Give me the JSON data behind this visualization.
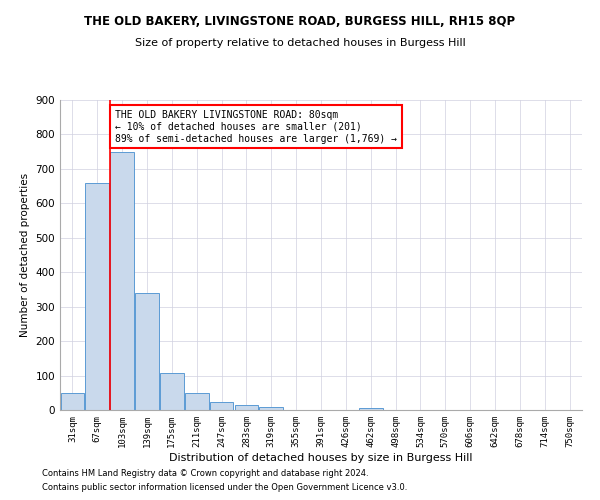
{
  "title": "THE OLD BAKERY, LIVINGSTONE ROAD, BURGESS HILL, RH15 8QP",
  "subtitle": "Size of property relative to detached houses in Burgess Hill",
  "xlabel": "Distribution of detached houses by size in Burgess Hill",
  "ylabel": "Number of detached properties",
  "footnote1": "Contains HM Land Registry data © Crown copyright and database right 2024.",
  "footnote2": "Contains public sector information licensed under the Open Government Licence v3.0.",
  "bin_labels": [
    "31sqm",
    "67sqm",
    "103sqm",
    "139sqm",
    "175sqm",
    "211sqm",
    "247sqm",
    "283sqm",
    "319sqm",
    "355sqm",
    "391sqm",
    "426sqm",
    "462sqm",
    "498sqm",
    "534sqm",
    "570sqm",
    "606sqm",
    "642sqm",
    "678sqm",
    "714sqm",
    "750sqm"
  ],
  "bar_heights": [
    50,
    660,
    750,
    340,
    108,
    48,
    22,
    14,
    10,
    0,
    0,
    0,
    7,
    0,
    0,
    0,
    0,
    0,
    0,
    0,
    0
  ],
  "bar_color": "#c9d9ec",
  "bar_edge_color": "#5b9bd5",
  "red_line_x": 1.5,
  "annotation_title": "THE OLD BAKERY LIVINGSTONE ROAD: 80sqm",
  "annotation_line1": "← 10% of detached houses are smaller (201)",
  "annotation_line2": "89% of semi-detached houses are larger (1,769) →",
  "ylim": [
    0,
    900
  ],
  "yticks": [
    0,
    100,
    200,
    300,
    400,
    500,
    600,
    700,
    800,
    900
  ],
  "background_color": "#ffffff",
  "grid_color": "#d0d0e0"
}
